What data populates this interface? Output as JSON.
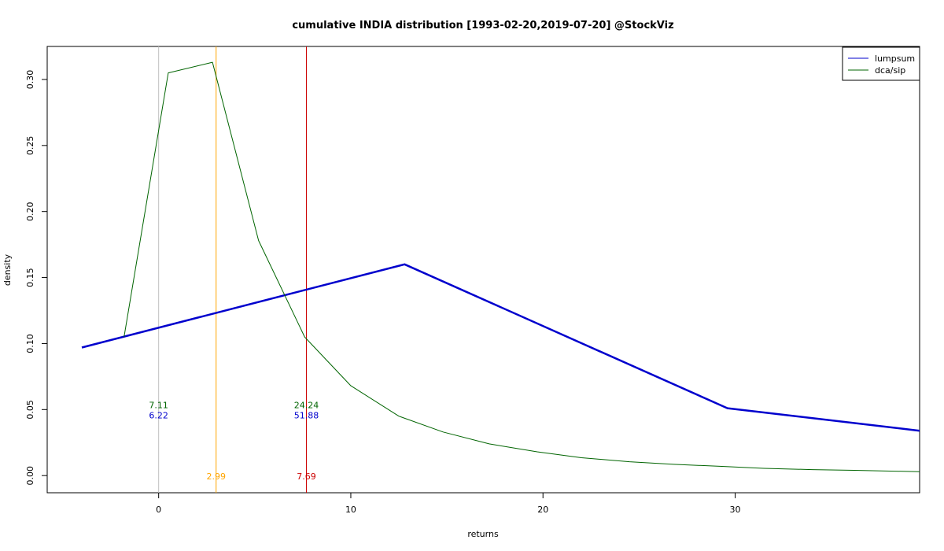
{
  "chart_data": {
    "type": "line",
    "title": "cumulative INDIA distribution [1993-02-20,2019-07-20] @StockViz",
    "xlabel": "returns",
    "ylabel": "density",
    "xlim": [
      -5.8,
      39.6
    ],
    "ylim": [
      -0.013,
      0.325
    ],
    "x_ticks": [
      0,
      10,
      20,
      30
    ],
    "x_tick_labels": [
      "0",
      "10",
      "20",
      "30"
    ],
    "y_ticks": [
      0.0,
      0.05,
      0.1,
      0.15,
      0.2,
      0.25,
      0.3
    ],
    "y_tick_labels": [
      "0.00",
      "0.05",
      "0.10",
      "0.15",
      "0.20",
      "0.25",
      "0.30"
    ],
    "grid": false,
    "legend_position": "top-right",
    "series": [
      {
        "name": "lumpsum",
        "color": "#0000cd",
        "line_width": 2.5,
        "x": [
          -4.0,
          12.8,
          29.6,
          39.6
        ],
        "y": [
          0.097,
          0.16,
          0.051,
          0.034
        ]
      },
      {
        "name": "dca/sip",
        "color": "#006400",
        "line_width": 1,
        "x": [
          -1.8,
          0.5,
          2.8,
          5.2,
          7.6,
          10.0,
          12.5,
          14.8,
          17.2,
          19.7,
          22.0,
          24.5,
          26.8,
          29.2,
          31.5,
          34.0,
          36.2,
          39.6
        ],
        "y": [
          0.105,
          0.305,
          0.313,
          0.178,
          0.105,
          0.068,
          0.045,
          0.033,
          0.024,
          0.018,
          0.0135,
          0.0105,
          0.0085,
          0.007,
          0.0055,
          0.0045,
          0.004,
          0.003
        ]
      }
    ],
    "reference_lines": [
      {
        "x": 0.0,
        "color": "#c0c0c0"
      },
      {
        "x": 2.99,
        "color": "#ffa500"
      },
      {
        "x": 7.69,
        "color": "#cc0000"
      }
    ],
    "annotations": [
      {
        "text": "7.11",
        "x": 0.0,
        "y": 0.053,
        "color": "#006400"
      },
      {
        "text": "6.22",
        "x": 0.0,
        "y": 0.045,
        "color": "#0000cd"
      },
      {
        "text": "24.24",
        "x": 7.69,
        "y": 0.053,
        "color": "#006400"
      },
      {
        "text": "51.88",
        "x": 7.69,
        "y": 0.045,
        "color": "#0000cd"
      },
      {
        "text": "2.99",
        "x": 2.99,
        "y": -0.001,
        "color": "#ffa500"
      },
      {
        "text": "7.69",
        "x": 7.69,
        "y": -0.001,
        "color": "#cc0000"
      }
    ]
  }
}
